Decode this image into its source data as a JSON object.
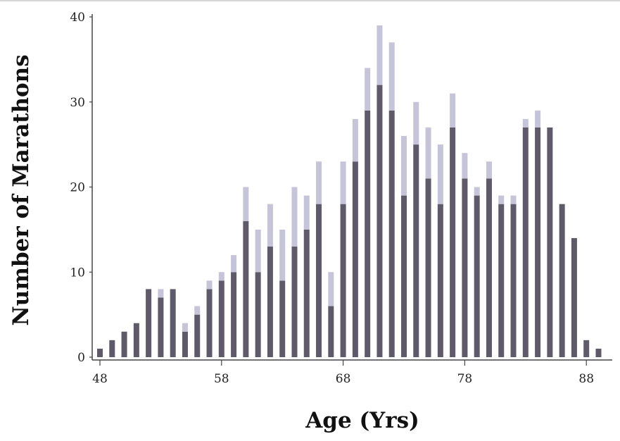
{
  "chart_data": {
    "type": "bar",
    "stacked": true,
    "title": "",
    "xlabel": "Age (Yrs)",
    "ylabel": "Number of Marathons",
    "ylim": [
      0,
      40
    ],
    "y_ticks": [
      0,
      10,
      20,
      30,
      40
    ],
    "x_tick_labels": [
      "48",
      "58",
      "68",
      "78",
      "88"
    ],
    "categories": [
      48,
      49,
      50,
      51,
      52,
      53,
      54,
      55,
      56,
      57,
      58,
      59,
      60,
      61,
      62,
      63,
      64,
      65,
      66,
      67,
      68,
      69,
      70,
      71,
      72,
      73,
      74,
      75,
      76,
      77,
      78,
      79,
      80,
      81,
      82,
      83,
      84,
      85,
      86,
      87,
      88,
      89
    ],
    "series": [
      {
        "color": "#5f5a6a",
        "values": [
          1,
          2,
          3,
          4,
          8,
          7,
          8,
          3,
          5,
          8,
          9,
          10,
          16,
          10,
          13,
          9,
          13,
          15,
          18,
          6,
          18,
          23,
          29,
          32,
          29,
          19,
          25,
          21,
          18,
          27,
          21,
          19,
          21,
          18,
          18,
          27,
          27,
          27,
          18,
          14,
          2,
          1
        ]
      },
      {
        "color": "#c6c4d9",
        "values": [
          0,
          0,
          0,
          0,
          0,
          1,
          0,
          1,
          1,
          1,
          1,
          2,
          4,
          5,
          5,
          6,
          7,
          4,
          5,
          4,
          5,
          5,
          5,
          7,
          8,
          7,
          5,
          6,
          7,
          4,
          3,
          1,
          2,
          1,
          1,
          1,
          2,
          0,
          0,
          0,
          0,
          0
        ]
      }
    ],
    "grid": false,
    "legend": "none"
  },
  "colors": {
    "axis": "#444444",
    "background": "#ffffff"
  }
}
